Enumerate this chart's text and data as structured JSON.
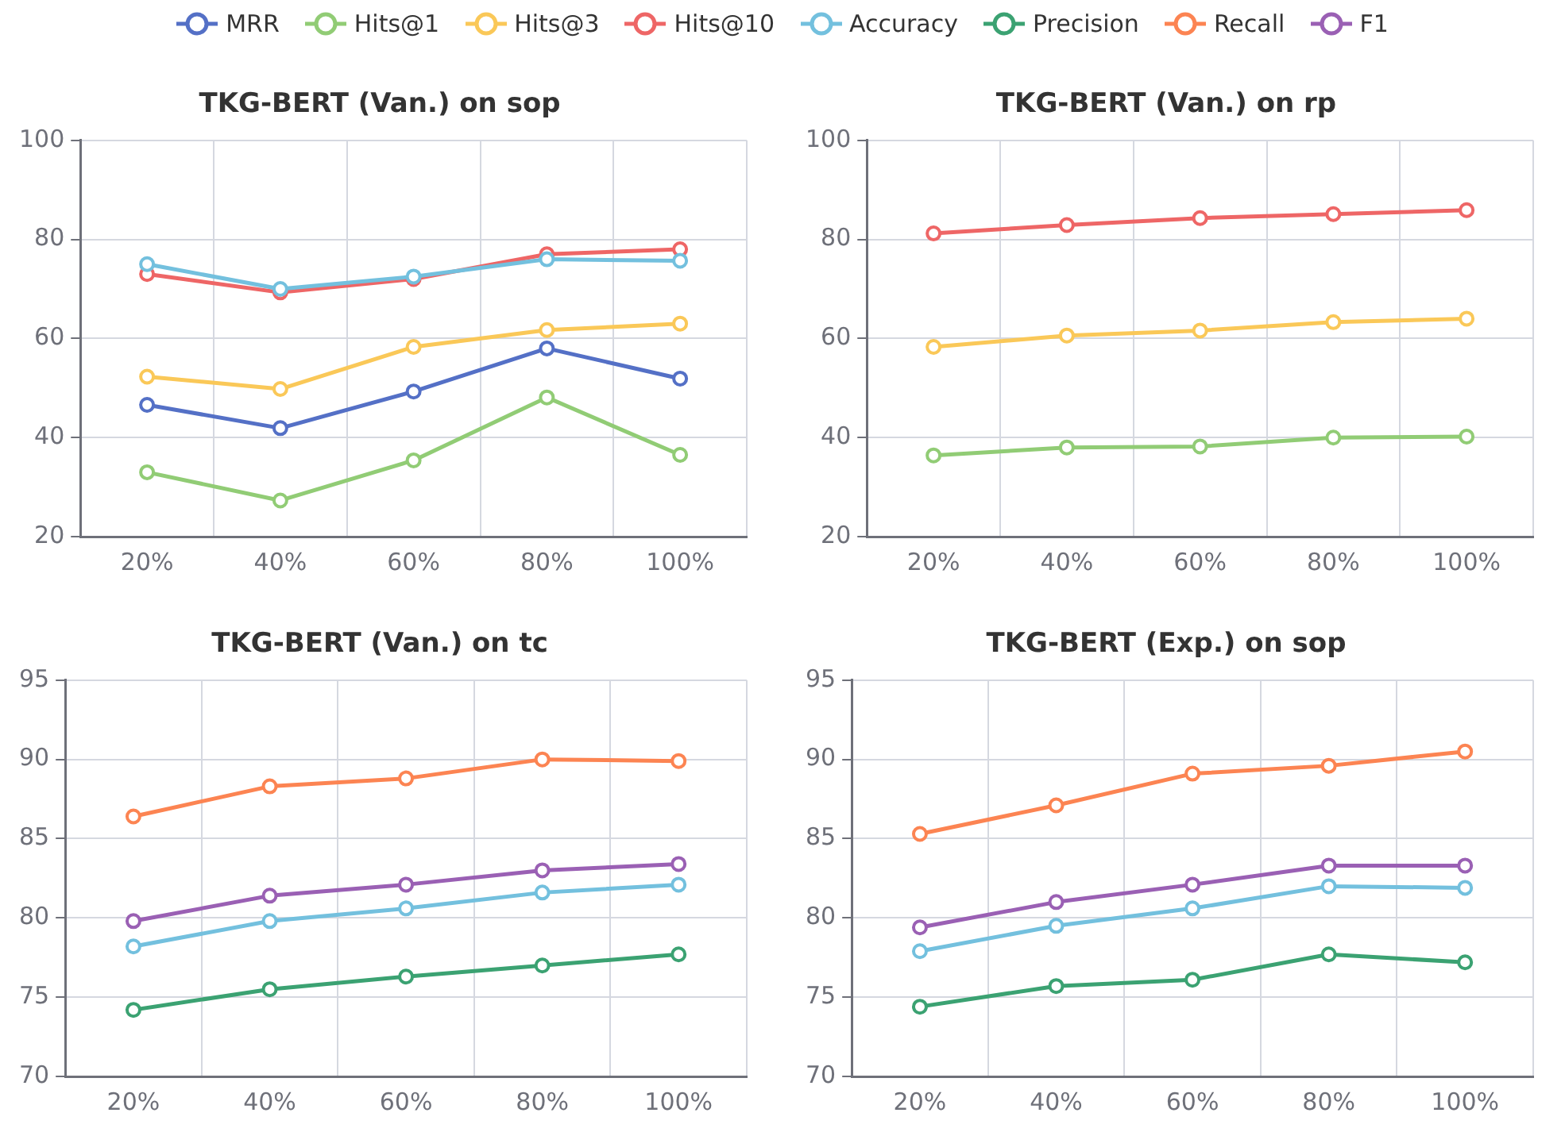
{
  "chart_data": [
    {
      "type": "line",
      "title": "TKG-BERT (Van.) on sop",
      "categories": [
        "20%",
        "40%",
        "60%",
        "80%",
        "100%"
      ],
      "ylim": [
        20,
        100
      ],
      "yticks": [
        20,
        40,
        60,
        80,
        100
      ],
      "grid": true,
      "legend": "top",
      "marker": "circle",
      "line_style": "solid",
      "series": [
        {
          "name": "MRR",
          "color": "#5470c6",
          "values": [
            46.6,
            41.9,
            49.3,
            58,
            51.9
          ]
        },
        {
          "name": "Hits@1",
          "color": "#91cc75",
          "values": [
            33,
            27.3,
            35.4,
            48.1,
            36.5
          ]
        },
        {
          "name": "Hits@3",
          "color": "#fac858",
          "values": [
            52.3,
            49.8,
            58.3,
            61.7,
            63
          ]
        },
        {
          "name": "Hits@10",
          "color": "#ee6666",
          "values": [
            73,
            69.3,
            72,
            77,
            78
          ]
        },
        {
          "name": "Accuracy",
          "color": "#73c0de",
          "values": [
            75,
            70,
            72.5,
            76,
            75.7
          ]
        }
      ]
    },
    {
      "type": "line",
      "title": "TKG-BERT (Van.) on rp",
      "categories": [
        "20%",
        "40%",
        "60%",
        "80%",
        "100%"
      ],
      "ylim": [
        20,
        100
      ],
      "yticks": [
        20,
        40,
        60,
        80,
        100
      ],
      "grid": true,
      "legend": "top",
      "marker": "circle",
      "line_style": "solid",
      "series": [
        {
          "name": "Hits@1",
          "color": "#91cc75",
          "values": [
            36.4,
            38,
            38.2,
            40,
            40.2
          ]
        },
        {
          "name": "Hits@3",
          "color": "#fac858",
          "values": [
            58.3,
            60.6,
            61.6,
            63.3,
            64
          ]
        },
        {
          "name": "Hits@10",
          "color": "#ee6666",
          "values": [
            81.2,
            82.9,
            84.3,
            85.1,
            85.9
          ]
        }
      ]
    },
    {
      "type": "line",
      "title": "TKG-BERT (Van.) on tc",
      "categories": [
        "20%",
        "40%",
        "60%",
        "80%",
        "100%"
      ],
      "ylim": [
        70,
        95
      ],
      "yticks": [
        70,
        75,
        80,
        85,
        90,
        95
      ],
      "grid": true,
      "legend": "top",
      "marker": "circle",
      "line_style": "solid",
      "series": [
        {
          "name": "Accuracy",
          "color": "#73c0de",
          "values": [
            78.2,
            79.8,
            80.6,
            81.6,
            82.1
          ]
        },
        {
          "name": "Precision",
          "color": "#3ba272",
          "values": [
            74.2,
            75.5,
            76.3,
            77,
            77.7
          ]
        },
        {
          "name": "Recall",
          "color": "#fc8452",
          "values": [
            86.4,
            88.3,
            88.8,
            90,
            89.9
          ]
        },
        {
          "name": "F1",
          "color": "#9a60b4",
          "values": [
            79.8,
            81.4,
            82.1,
            83,
            83.4
          ]
        }
      ]
    },
    {
      "type": "line",
      "title": "TKG-BERT (Exp.) on sop",
      "categories": [
        "20%",
        "40%",
        "60%",
        "80%",
        "100%"
      ],
      "ylim": [
        70,
        95
      ],
      "yticks": [
        70,
        75,
        80,
        85,
        90,
        95
      ],
      "grid": true,
      "legend": "top",
      "marker": "circle",
      "line_style": "solid",
      "series": [
        {
          "name": "Accuracy",
          "color": "#73c0de",
          "values": [
            77.9,
            79.5,
            80.6,
            82,
            81.9
          ]
        },
        {
          "name": "Precision",
          "color": "#3ba272",
          "values": [
            74.4,
            75.7,
            76.1,
            77.7,
            77.2
          ]
        },
        {
          "name": "Recall",
          "color": "#fc8452",
          "values": [
            85.3,
            87.1,
            89.1,
            89.6,
            90.5
          ]
        },
        {
          "name": "F1",
          "color": "#9a60b4",
          "values": [
            79.4,
            81,
            82.1,
            83.3,
            83.3
          ]
        }
      ]
    }
  ]
}
